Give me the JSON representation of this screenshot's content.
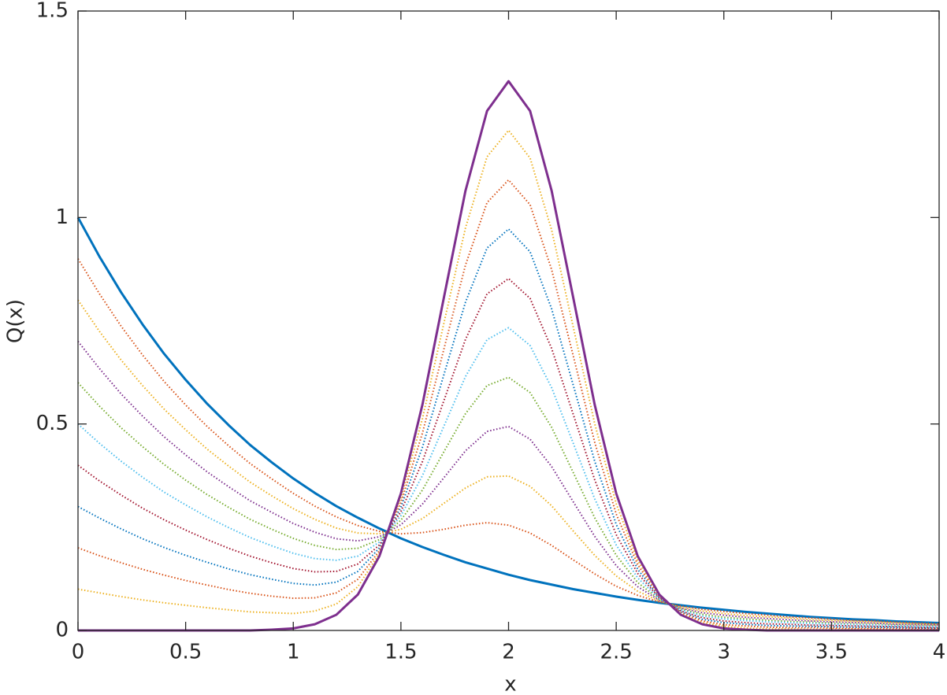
{
  "chart_data": {
    "type": "line",
    "xlabel": "x",
    "ylabel": "Q(x)",
    "xlim": [
      0,
      4
    ],
    "ylim": [
      0,
      1.5
    ],
    "xticks": [
      0,
      0.5,
      1,
      1.5,
      2,
      2.5,
      3,
      3.5,
      4
    ],
    "yticks": [
      0,
      0.5,
      1,
      1.5
    ],
    "grid": false,
    "x": [
      0,
      0.1,
      0.2,
      0.3,
      0.4,
      0.5,
      0.6,
      0.7,
      0.8,
      0.9,
      1,
      1.1,
      1.2,
      1.3,
      1.4,
      1.5,
      1.6,
      1.7,
      1.8,
      1.9,
      2,
      2.1,
      2.2,
      2.3,
      2.4,
      2.5,
      2.6,
      2.7,
      2.8,
      2.9,
      3,
      3.1,
      3.2,
      3.3,
      3.4,
      3.5,
      3.6,
      3.7,
      3.8,
      3.9,
      4
    ],
    "series": [
      {
        "color": "#0072bd",
        "style": "solid",
        "values": [
          1,
          0.905,
          0.819,
          0.741,
          0.67,
          0.607,
          0.549,
          0.497,
          0.449,
          0.407,
          0.368,
          0.333,
          0.301,
          0.273,
          0.247,
          0.223,
          0.202,
          0.183,
          0.165,
          0.15,
          0.135,
          0.122,
          0.111,
          0.1,
          0.091,
          0.082,
          0.074,
          0.067,
          0.061,
          0.055,
          0.05,
          0.045,
          0.041,
          0.037,
          0.033,
          0.03,
          0.027,
          0.025,
          0.022,
          0.02,
          0.018
        ]
      },
      {
        "color": "#d95319",
        "style": "dotted",
        "values": [
          0.9,
          0.815,
          0.737,
          0.667,
          0.603,
          0.546,
          0.494,
          0.447,
          0.404,
          0.367,
          0.332,
          0.301,
          0.275,
          0.254,
          0.24,
          0.234,
          0.237,
          0.245,
          0.255,
          0.261,
          0.255,
          0.236,
          0.206,
          0.171,
          0.137,
          0.107,
          0.085,
          0.069,
          0.059,
          0.051,
          0.046,
          0.041,
          0.037,
          0.033,
          0.03,
          0.027,
          0.024,
          0.023,
          0.02,
          0.018,
          0.016
        ]
      },
      {
        "color": "#edb120",
        "style": "dotted",
        "values": [
          0.8,
          0.724,
          0.655,
          0.593,
          0.536,
          0.486,
          0.439,
          0.398,
          0.359,
          0.326,
          0.295,
          0.269,
          0.248,
          0.236,
          0.234,
          0.245,
          0.271,
          0.308,
          0.345,
          0.372,
          0.374,
          0.349,
          0.302,
          0.241,
          0.182,
          0.132,
          0.095,
          0.071,
          0.056,
          0.047,
          0.041,
          0.036,
          0.033,
          0.03,
          0.026,
          0.024,
          0.022,
          0.02,
          0.018,
          0.016,
          0.014
        ]
      },
      {
        "color": "#7e2f8e",
        "style": "dotted",
        "values": [
          0.7,
          0.634,
          0.573,
          0.519,
          0.469,
          0.425,
          0.384,
          0.348,
          0.314,
          0.286,
          0.259,
          0.238,
          0.222,
          0.217,
          0.227,
          0.256,
          0.306,
          0.37,
          0.435,
          0.482,
          0.494,
          0.463,
          0.397,
          0.312,
          0.228,
          0.157,
          0.106,
          0.073,
          0.054,
          0.043,
          0.037,
          0.032,
          0.029,
          0.026,
          0.023,
          0.021,
          0.019,
          0.018,
          0.015,
          0.014,
          0.013
        ]
      },
      {
        "color": "#77ac30",
        "style": "dotted",
        "values": [
          0.6,
          0.543,
          0.491,
          0.445,
          0.402,
          0.364,
          0.329,
          0.298,
          0.269,
          0.245,
          0.223,
          0.206,
          0.196,
          0.199,
          0.22,
          0.267,
          0.34,
          0.433,
          0.525,
          0.593,
          0.613,
          0.576,
          0.492,
          0.383,
          0.273,
          0.182,
          0.116,
          0.075,
          0.052,
          0.039,
          0.032,
          0.028,
          0.025,
          0.022,
          0.02,
          0.018,
          0.016,
          0.015,
          0.013,
          0.012,
          0.011
        ]
      },
      {
        "color": "#4dbeee",
        "style": "dotted",
        "values": [
          0.5,
          0.453,
          0.41,
          0.371,
          0.335,
          0.304,
          0.275,
          0.249,
          0.225,
          0.205,
          0.187,
          0.174,
          0.17,
          0.18,
          0.214,
          0.278,
          0.375,
          0.495,
          0.615,
          0.704,
          0.733,
          0.69,
          0.588,
          0.454,
          0.319,
          0.207,
          0.127,
          0.077,
          0.05,
          0.035,
          0.028,
          0.024,
          0.021,
          0.019,
          0.017,
          0.015,
          0.014,
          0.013,
          0.011,
          0.01,
          0.009
        ]
      },
      {
        "color": "#a2142f",
        "style": "dotted",
        "values": [
          0.4,
          0.362,
          0.328,
          0.296,
          0.268,
          0.243,
          0.22,
          0.199,
          0.18,
          0.164,
          0.15,
          0.142,
          0.143,
          0.161,
          0.207,
          0.288,
          0.409,
          0.557,
          0.705,
          0.815,
          0.852,
          0.804,
          0.683,
          0.524,
          0.365,
          0.232,
          0.138,
          0.079,
          0.047,
          0.031,
          0.023,
          0.019,
          0.016,
          0.015,
          0.013,
          0.012,
          0.011,
          0.01,
          0.009,
          0.008,
          0.007
        ]
      },
      {
        "color": "#0072bd",
        "style": "dotted",
        "values": [
          0.3,
          0.272,
          0.246,
          0.222,
          0.201,
          0.182,
          0.165,
          0.149,
          0.135,
          0.124,
          0.114,
          0.11,
          0.117,
          0.143,
          0.2,
          0.299,
          0.444,
          0.62,
          0.795,
          0.926,
          0.972,
          0.917,
          0.779,
          0.595,
          0.41,
          0.257,
          0.148,
          0.081,
          0.045,
          0.027,
          0.019,
          0.015,
          0.012,
          0.011,
          0.01,
          0.009,
          0.008,
          0.008,
          0.007,
          0.006,
          0.005
        ]
      },
      {
        "color": "#d95319",
        "style": "dotted",
        "values": [
          0.2,
          0.181,
          0.164,
          0.148,
          0.134,
          0.121,
          0.11,
          0.099,
          0.09,
          0.083,
          0.078,
          0.079,
          0.091,
          0.124,
          0.193,
          0.31,
          0.478,
          0.682,
          0.885,
          1.036,
          1.091,
          1.031,
          0.874,
          0.666,
          0.456,
          0.282,
          0.159,
          0.083,
          0.043,
          0.023,
          0.014,
          0.011,
          0.008,
          0.007,
          0.007,
          0.006,
          0.005,
          0.005,
          0.004,
          0.004,
          0.004
        ]
      },
      {
        "color": "#edb120",
        "style": "dotted",
        "values": [
          0.1,
          0.091,
          0.082,
          0.074,
          0.067,
          0.061,
          0.055,
          0.05,
          0.045,
          0.043,
          0.041,
          0.047,
          0.064,
          0.106,
          0.187,
          0.321,
          0.513,
          0.745,
          0.975,
          1.147,
          1.211,
          1.144,
          0.97,
          0.736,
          0.501,
          0.307,
          0.169,
          0.085,
          0.04,
          0.019,
          0.01,
          0.006,
          0.004,
          0.004,
          0.003,
          0.003,
          0.003,
          0.003,
          0.002,
          0.002,
          0.002
        ]
      },
      {
        "color": "#7e2f8e",
        "style": "solid",
        "values": [
          0,
          0,
          0,
          0,
          0,
          0,
          0,
          0,
          0,
          0.002,
          0.005,
          0.015,
          0.038,
          0.087,
          0.18,
          0.332,
          0.547,
          0.807,
          1.065,
          1.258,
          1.33,
          1.258,
          1.065,
          0.807,
          0.547,
          0.332,
          0.18,
          0.087,
          0.038,
          0.015,
          0.005,
          0.002,
          0,
          0,
          0,
          0,
          0,
          0,
          0,
          0,
          0
        ]
      }
    ]
  }
}
